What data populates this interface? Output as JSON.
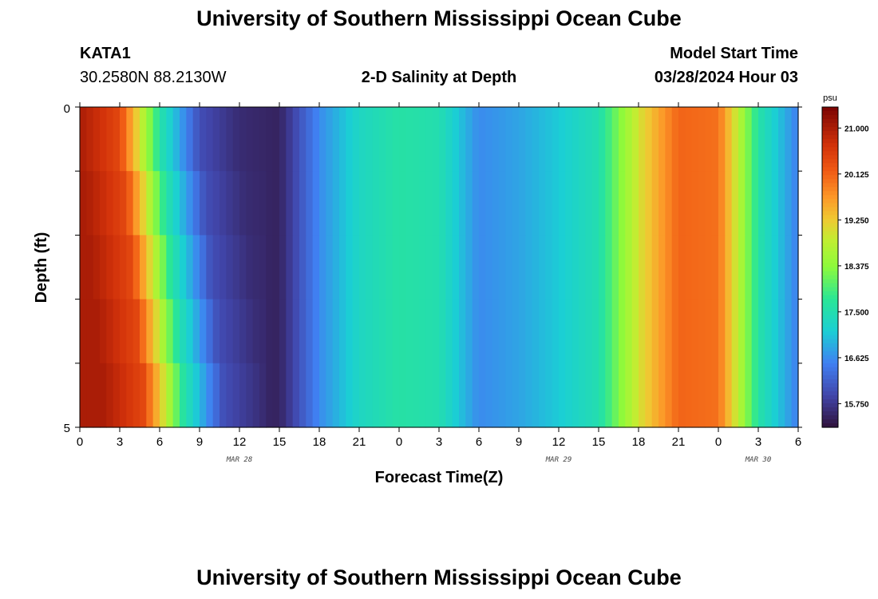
{
  "header": {
    "title": "University of Southern Mississippi Ocean Cube",
    "station_name": "KATA1",
    "station_coords": "30.2580N  88.2130W",
    "plot_title": "2-D Salinity at Depth",
    "model_start_label": "Model Start Time",
    "model_start_value": "03/28/2024 Hour 03"
  },
  "footer": {
    "title": "University of Southern Mississippi Ocean Cube"
  },
  "chart_data": {
    "type": "heatmap",
    "title": "2-D Salinity at Depth",
    "xlabel": "Forecast Time(Z)",
    "ylabel": "Depth (ft)",
    "ylim": [
      0,
      5
    ],
    "y_tick_labels": [
      "0",
      "5"
    ],
    "x_tick_labels": [
      "0",
      "3",
      "6",
      "9",
      "12",
      "15",
      "18",
      "21",
      "0",
      "3",
      "6",
      "9",
      "12",
      "15",
      "18",
      "21",
      "0",
      "3",
      "6"
    ],
    "date_labels": [
      {
        "text": "MAR 28",
        "at_tick": 4
      },
      {
        "text": "MAR 29",
        "at_tick": 12
      },
      {
        "text": "MAR 30",
        "at_tick": 17
      }
    ],
    "colorbar": {
      "unit": "psu",
      "min": 15.3,
      "max": 21.4,
      "tick_values": [
        21.0,
        20.125,
        19.25,
        18.375,
        17.5,
        16.625,
        15.75
      ],
      "tick_labels": [
        "21.000",
        "20.125",
        "19.250",
        "18.375",
        "17.500",
        "16.625",
        "15.750"
      ]
    },
    "time_hours": [
      0,
      3,
      6,
      9,
      12,
      15,
      18,
      21,
      24,
      27,
      30,
      33,
      36,
      39,
      42,
      45,
      48,
      51,
      54
    ],
    "depth_layers_ft": [
      0.25,
      0.75,
      1.25,
      1.75,
      2.25,
      2.75,
      3.25,
      3.75,
      4.25,
      4.75
    ],
    "salinity_profile_psu": [
      21.0,
      20.4,
      17.6,
      16.0,
      15.6,
      15.5,
      16.6,
      17.3,
      17.6,
      17.5,
      16.6,
      16.8,
      17.1,
      17.5,
      19.0,
      20.1,
      20.0,
      17.6,
      16.5
    ],
    "notes_visible": "low-salinity minimum near hours 9-12 on MAR 28; highs near 0Z on MAR 30"
  }
}
